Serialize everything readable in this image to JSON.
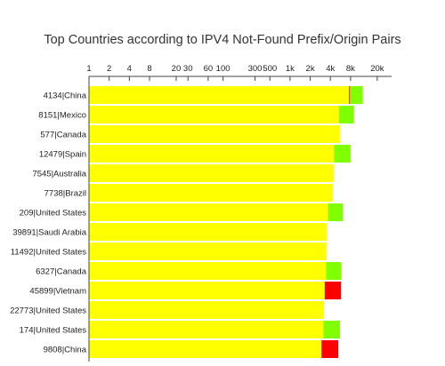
{
  "chart_data": {
    "type": "bar",
    "orientation": "horizontal",
    "stacked": true,
    "title": "Top Countries according to IPV4 Not-Found Prefix/Origin Pairs",
    "x_scale": "log2",
    "x_axis_position": "top",
    "x_ticks": [
      1,
      2,
      4,
      8,
      20,
      30,
      60,
      100,
      300,
      500,
      1000,
      2000,
      4000,
      8000,
      20000
    ],
    "x_tick_labels": [
      "1",
      "2",
      "4",
      "8",
      "20",
      "30",
      "60",
      "100",
      "300",
      "500",
      "1k",
      "2k",
      "4k",
      "8k",
      "20k"
    ],
    "categories": [
      "4134|China",
      "8151|Mexico",
      "577|Canada",
      "12479|Spain",
      "7545|Australia",
      "7738|Brazil",
      "209|United States",
      "39891|Saudi Arabia",
      "11492|United States",
      "6327|Canada",
      "45899|Vietnam",
      "22773|United States",
      "174|United States",
      "9808|China"
    ],
    "series": [
      {
        "color": "#ffff00",
        "values": [
          7600,
          5400,
          5600,
          4550,
          4500,
          4350,
          3700,
          3550,
          3500,
          3450,
          3300,
          3200,
          3150,
          2950
        ]
      },
      {
        "color": "#ff0000",
        "values": [
          250,
          0,
          0,
          0,
          0,
          0,
          0,
          0,
          0,
          0,
          2450,
          0,
          0,
          2300
        ]
      },
      {
        "color": "#80ff00",
        "values": [
          4350,
          3600,
          0,
          3450,
          0,
          0,
          2450,
          0,
          0,
          2400,
          0,
          0,
          2400,
          0
        ]
      }
    ],
    "grid": false,
    "legend": "none"
  }
}
